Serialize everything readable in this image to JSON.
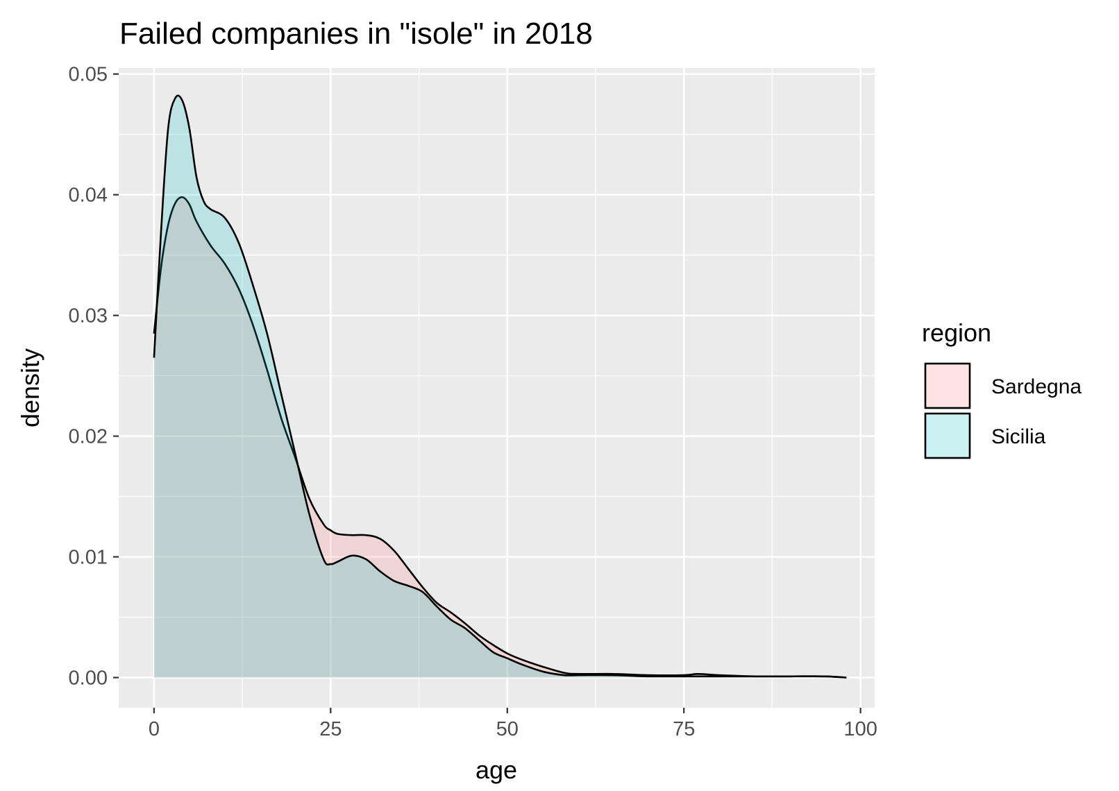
{
  "chart_data": {
    "type": "area",
    "title": "Failed companies in \"isole\" in 2018",
    "xlabel": "age",
    "ylabel": "density",
    "xlim": [
      -5,
      102
    ],
    "ylim": [
      -0.0025,
      0.0505
    ],
    "x_ticks": [
      0,
      25,
      50,
      75,
      100
    ],
    "x_tick_labels": [
      "0",
      "25",
      "50",
      "75",
      "100"
    ],
    "y_ticks": [
      0,
      0.01,
      0.02,
      0.03,
      0.04,
      0.05
    ],
    "y_tick_labels": [
      "0.00",
      "0.01",
      "0.02",
      "0.03",
      "0.04",
      "0.05"
    ],
    "grid": true,
    "legend": {
      "title": "region",
      "position": "right"
    },
    "series": [
      {
        "name": "Sardegna",
        "fill": "#f8766d",
        "x": [
          0,
          1,
          2,
          3,
          4,
          5,
          6,
          8,
          10,
          12,
          14,
          16,
          18,
          20,
          22,
          24,
          25,
          26,
          28,
          30,
          32,
          34,
          36,
          38,
          40,
          42,
          44,
          46,
          48,
          50,
          52,
          55,
          58,
          60,
          65,
          70,
          75,
          77,
          80,
          85,
          90,
          95,
          98
        ],
        "y": [
          0.0285,
          0.034,
          0.0375,
          0.0393,
          0.0398,
          0.0392,
          0.0378,
          0.0358,
          0.0343,
          0.0322,
          0.0292,
          0.0255,
          0.0215,
          0.0182,
          0.0148,
          0.0127,
          0.0122,
          0.0119,
          0.0118,
          0.0118,
          0.0115,
          0.0105,
          0.009,
          0.0075,
          0.0062,
          0.0054,
          0.0045,
          0.0035,
          0.0027,
          0.002,
          0.0015,
          0.0009,
          0.0004,
          0.0003,
          0.0003,
          0.0002,
          0.0002,
          0.0003,
          0.0002,
          0.0001,
          0.0001,
          0.0001,
          0.0
        ]
      },
      {
        "name": "Sicilia",
        "fill": "#00bfc4",
        "x": [
          0,
          1,
          2,
          3,
          4,
          5,
          6,
          7,
          8,
          10,
          12,
          14,
          16,
          18,
          20,
          22,
          24,
          25,
          26,
          28,
          30,
          32,
          34,
          36,
          38,
          40,
          42,
          44,
          46,
          48,
          50,
          52,
          55,
          58,
          60,
          65,
          70,
          75,
          80,
          85,
          90,
          95,
          98
        ],
        "y": [
          0.0265,
          0.037,
          0.0455,
          0.048,
          0.0478,
          0.0455,
          0.0415,
          0.0395,
          0.0388,
          0.0381,
          0.036,
          0.0325,
          0.0285,
          0.0235,
          0.0185,
          0.0135,
          0.0098,
          0.0094,
          0.0096,
          0.0101,
          0.0098,
          0.0088,
          0.008,
          0.0076,
          0.0071,
          0.0059,
          0.0048,
          0.0041,
          0.0031,
          0.0021,
          0.0016,
          0.0011,
          0.0005,
          0.0002,
          0.0002,
          0.0002,
          0.0001,
          0.0001,
          0.0001,
          0.0001,
          0.0001,
          0.0001,
          0.0
        ]
      }
    ]
  }
}
